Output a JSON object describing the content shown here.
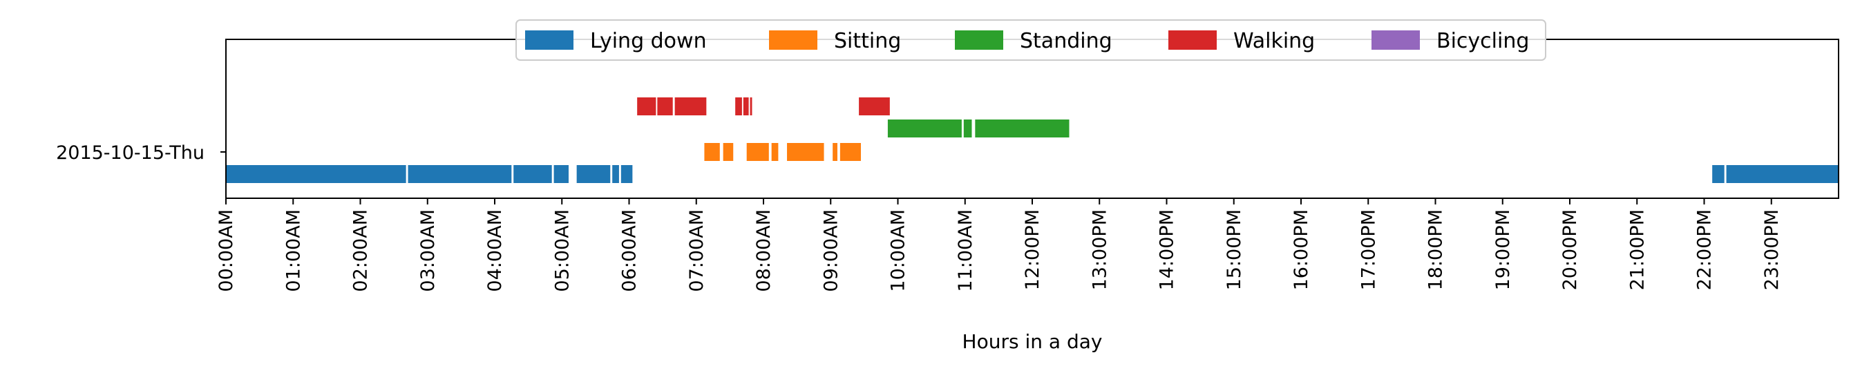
{
  "chart_data": {
    "type": "timeline",
    "title": "",
    "xlabel": "Hours in a day",
    "ylabel": "",
    "xlim": [
      0,
      24
    ],
    "date_label": "2015-10-15-Thu",
    "x_tick_labels": [
      "00:00AM",
      "01:00AM",
      "02:00AM",
      "03:00AM",
      "04:00AM",
      "05:00AM",
      "06:00AM",
      "07:00AM",
      "08:00AM",
      "09:00AM",
      "10:00AM",
      "11:00AM",
      "12:00PM",
      "13:00PM",
      "14:00PM",
      "15:00PM",
      "16:00PM",
      "17:00PM",
      "18:00PM",
      "19:00PM",
      "20:00PM",
      "21:00PM",
      "22:00PM",
      "23:00PM"
    ],
    "legend_position": "top-center",
    "series": [
      {
        "name": "Lying down",
        "color": "#1f77b4",
        "level": 0,
        "intervals": [
          [
            0.0,
            2.68
          ],
          [
            2.71,
            4.25
          ],
          [
            4.28,
            4.85
          ],
          [
            4.88,
            5.1
          ],
          [
            5.22,
            5.72
          ],
          [
            5.75,
            5.85
          ],
          [
            5.88,
            6.05
          ],
          [
            22.12,
            22.3
          ],
          [
            22.33,
            24.0
          ]
        ]
      },
      {
        "name": "Sitting",
        "color": "#ff7f0e",
        "level": 1,
        "intervals": [
          [
            7.12,
            7.35
          ],
          [
            7.4,
            7.55
          ],
          [
            7.75,
            8.08
          ],
          [
            8.12,
            8.22
          ],
          [
            8.35,
            8.9
          ],
          [
            9.03,
            9.1
          ],
          [
            9.14,
            9.45
          ]
        ]
      },
      {
        "name": "Standing",
        "color": "#2ca02c",
        "level": 2,
        "intervals": [
          [
            9.85,
            10.95
          ],
          [
            10.98,
            11.1
          ],
          [
            11.15,
            12.55
          ]
        ]
      },
      {
        "name": "Walking",
        "color": "#d62728",
        "level": 3,
        "intervals": [
          [
            6.12,
            6.4
          ],
          [
            6.42,
            6.65
          ],
          [
            6.68,
            7.15
          ],
          [
            7.58,
            7.68
          ],
          [
            7.7,
            7.78
          ],
          [
            7.8,
            7.83
          ],
          [
            9.42,
            9.88
          ]
        ]
      },
      {
        "name": "Bicycling",
        "color": "#9467bd",
        "level": 4,
        "intervals": []
      }
    ]
  }
}
